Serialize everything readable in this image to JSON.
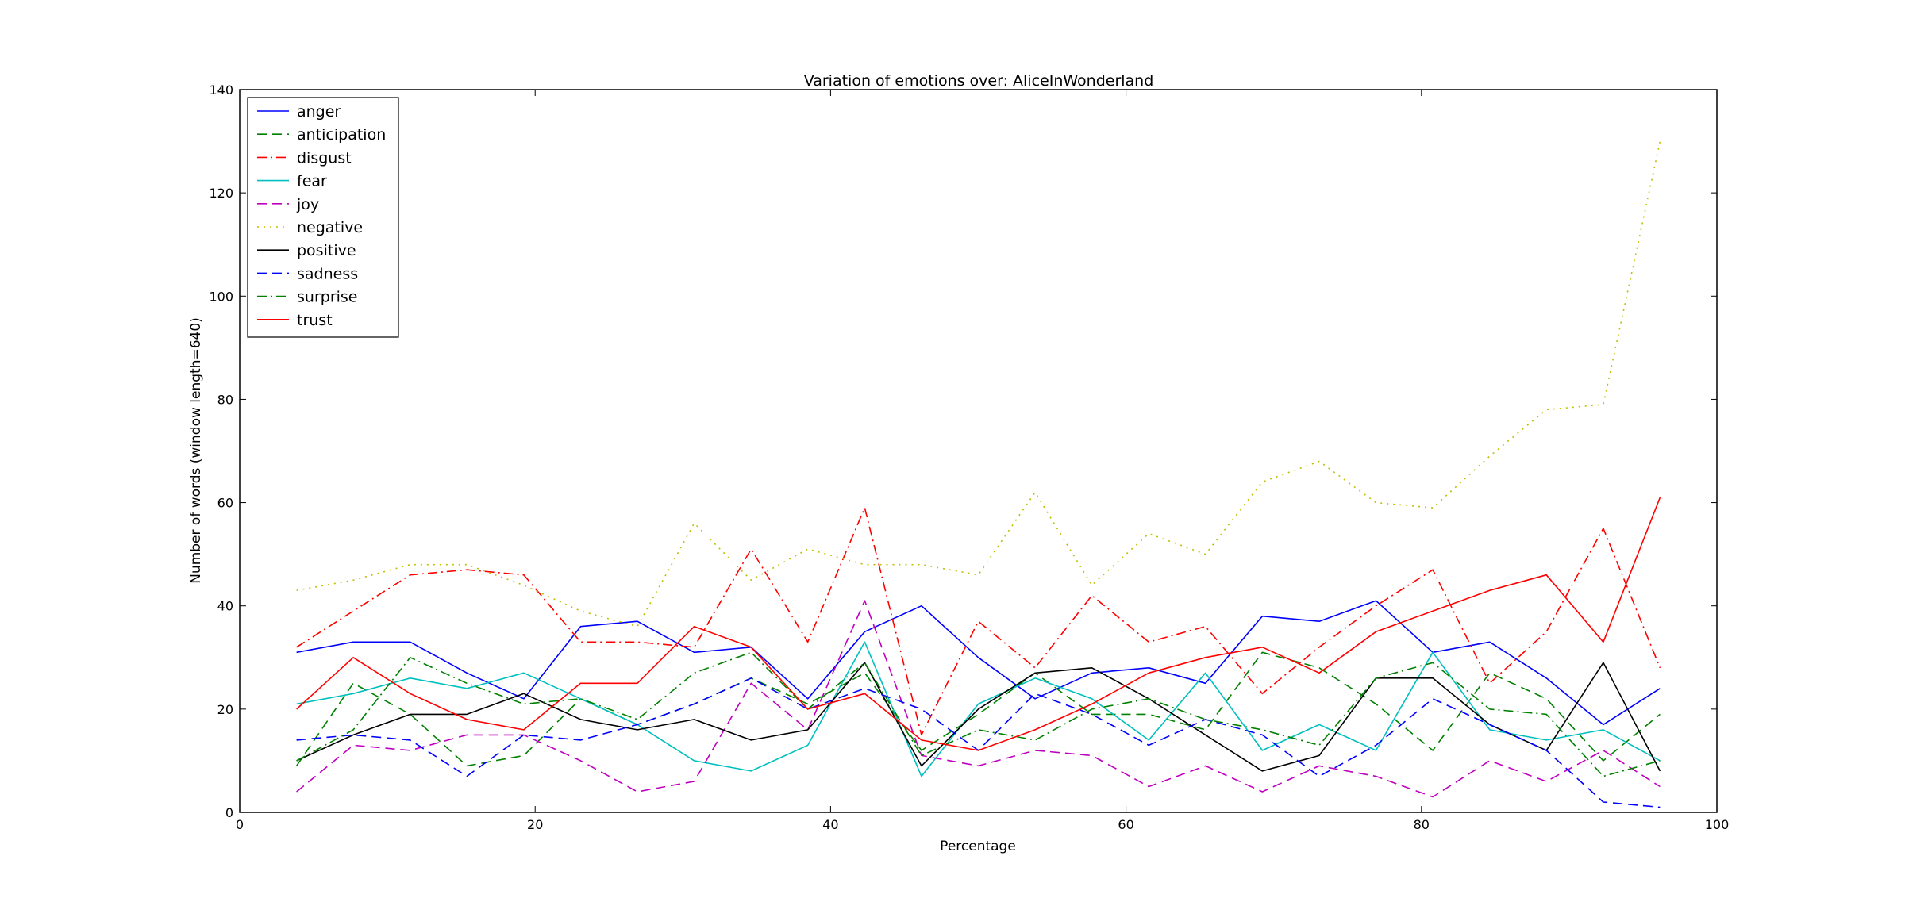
{
  "chart_data": {
    "type": "line",
    "title": "Variation of emotions over: AliceInWonderland",
    "xlabel": "Percentage",
    "ylabel": "Number of words (window length=640)",
    "xlim": [
      0,
      100
    ],
    "ylim": [
      0,
      140
    ],
    "xticks": [
      "0",
      "20",
      "40",
      "60",
      "80",
      "100"
    ],
    "yticks": [
      "0",
      "20",
      "40",
      "60",
      "80",
      "100",
      "120",
      "140"
    ],
    "legend_position": "top-left",
    "grid": false,
    "x": [
      3.85,
      7.69,
      11.54,
      15.38,
      19.23,
      23.08,
      26.92,
      30.77,
      34.62,
      38.46,
      42.31,
      46.15,
      50.0,
      53.85,
      57.69,
      61.54,
      65.38,
      69.23,
      73.08,
      76.92,
      80.77,
      84.62,
      88.46,
      92.31,
      96.15
    ],
    "series": [
      {
        "name": "anger",
        "color": "#0000ff",
        "style": "solid",
        "values": [
          31,
          33,
          33,
          27,
          22,
          36,
          37,
          31,
          32,
          22,
          35,
          40,
          30,
          22,
          27,
          28,
          25,
          38,
          37,
          41,
          31,
          33,
          26,
          17,
          24
        ]
      },
      {
        "name": "anticipation",
        "color": "#008000",
        "style": "dashed",
        "values": [
          9,
          25,
          19,
          9,
          11,
          22,
          17,
          21,
          26,
          21,
          27,
          12,
          19,
          27,
          19,
          19,
          16,
          31,
          28,
          21,
          12,
          27,
          22,
          10,
          19
        ]
      },
      {
        "name": "disgust",
        "color": "#ff0000",
        "style": "dashdot",
        "values": [
          32,
          39,
          46,
          47,
          46,
          33,
          33,
          32,
          51,
          33,
          59,
          15,
          37,
          28,
          42,
          33,
          36,
          23,
          32,
          40,
          47,
          25,
          35,
          55,
          28
        ]
      },
      {
        "name": "fear",
        "color": "#00bfbf",
        "style": "solid",
        "values": [
          21,
          23,
          26,
          24,
          27,
          22,
          17,
          10,
          8,
          13,
          33,
          7,
          21,
          26,
          22,
          14,
          27,
          12,
          17,
          12,
          31,
          16,
          14,
          16,
          10
        ]
      },
      {
        "name": "joy",
        "color": "#bf00bf",
        "style": "dashed",
        "values": [
          4,
          13,
          12,
          15,
          15,
          10,
          4,
          6,
          25,
          16,
          41,
          11,
          9,
          12,
          11,
          5,
          9,
          4,
          9,
          7,
          3,
          10,
          6,
          12,
          5
        ]
      },
      {
        "name": "negative",
        "color": "#bfbf00",
        "style": "dotted",
        "values": [
          43,
          45,
          48,
          48,
          44,
          39,
          36,
          56,
          45,
          51,
          48,
          48,
          46,
          62,
          44,
          54,
          50,
          64,
          68,
          60,
          59,
          69,
          78,
          79,
          130
        ]
      },
      {
        "name": "positive",
        "color": "#000000",
        "style": "solid",
        "values": [
          10,
          15,
          19,
          19,
          23,
          18,
          16,
          18,
          14,
          16,
          29,
          9,
          20,
          27,
          28,
          22,
          15,
          8,
          11,
          26,
          26,
          17,
          12,
          29,
          8
        ]
      },
      {
        "name": "sadness",
        "color": "#0000ff",
        "style": "dashed",
        "values": [
          14,
          15,
          14,
          7,
          15,
          14,
          17,
          21,
          26,
          20,
          24,
          20,
          12,
          23,
          19,
          13,
          18,
          15,
          7,
          13,
          22,
          17,
          12,
          2,
          1
        ]
      },
      {
        "name": "surprise",
        "color": "#008000",
        "style": "dashdot",
        "values": [
          10,
          16,
          30,
          25,
          21,
          22,
          18,
          27,
          31,
          20,
          29,
          11,
          16,
          14,
          20,
          22,
          18,
          16,
          13,
          26,
          29,
          20,
          19,
          7,
          10
        ]
      },
      {
        "name": "trust",
        "color": "#ff0000",
        "style": "solid",
        "values": [
          20,
          30,
          23,
          18,
          16,
          25,
          25,
          36,
          32,
          20,
          23,
          14,
          12,
          16,
          21,
          27,
          30,
          32,
          27,
          35,
          39,
          43,
          46,
          33,
          61
        ]
      }
    ]
  }
}
